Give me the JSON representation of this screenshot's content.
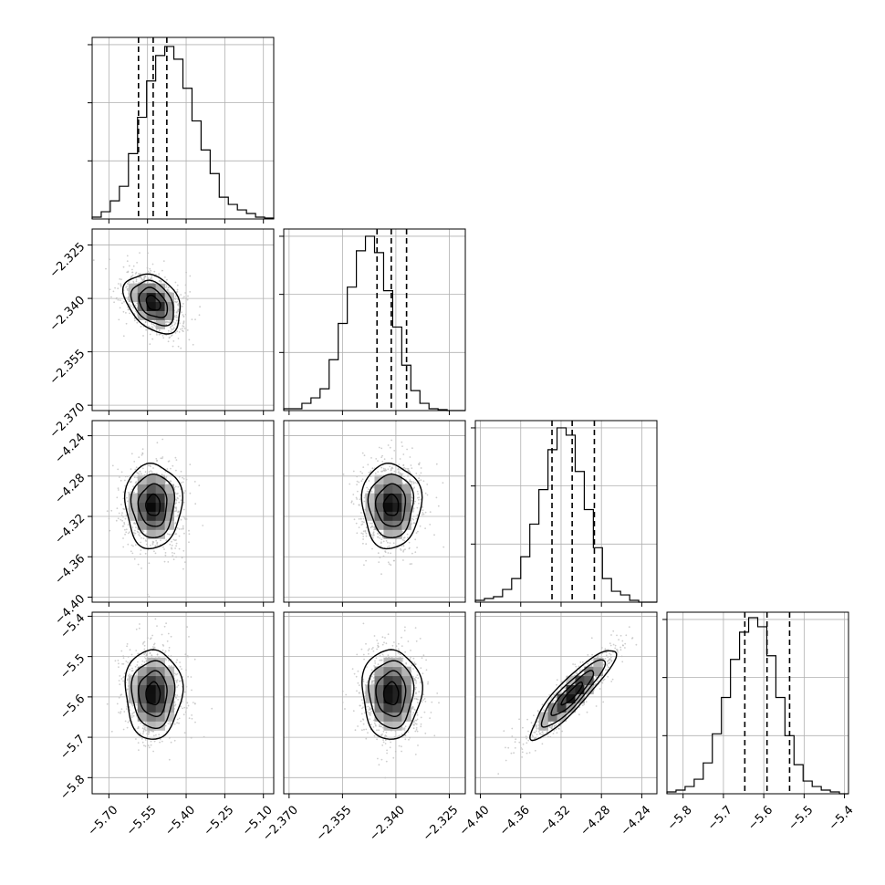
{
  "chart_data": {
    "type": "corner",
    "parameters": [
      {
        "ticks": [
          -5.7,
          -5.55,
          -5.4,
          -5.25,
          -5.1
        ],
        "tick_labels": [
          "−5.70",
          "−5.55",
          "−5.40",
          "−5.25",
          "−5.10"
        ],
        "range": [
          -5.765,
          -5.06
        ],
        "median": -5.528,
        "q16": -5.585,
        "q84": -5.475
      },
      {
        "ticks": [
          -2.37,
          -2.355,
          -2.34,
          -2.325
        ],
        "tick_labels": [
          "−2.370",
          "−2.355",
          "−2.340",
          "−2.325"
        ],
        "range": [
          -2.3715,
          -2.3205
        ],
        "median": -2.3413,
        "q16": -2.3453,
        "q84": -2.337
      },
      {
        "ticks": [
          -4.4,
          -4.36,
          -4.32,
          -4.28,
          -4.24
        ],
        "tick_labels": [
          "−4.40",
          "−4.36",
          "−4.32",
          "−4.28",
          "−4.24"
        ],
        "range": [
          -4.405,
          -4.225
        ],
        "median": -4.309,
        "q16": -4.329,
        "q84": -4.287
      },
      {
        "ticks": [
          -5.8,
          -5.7,
          -5.6,
          -5.5,
          -5.4
        ],
        "tick_labels": [
          "−5.8",
          "−5.7",
          "−5.6",
          "−5.5",
          "−5.4"
        ],
        "range": [
          -5.84,
          -5.39
        ],
        "median": -5.592,
        "q16": -5.647,
        "q84": -5.536
      }
    ],
    "histograms": [
      [
        0.01,
        0.04,
        0.1,
        0.18,
        0.36,
        0.56,
        0.76,
        0.9,
        0.95,
        0.88,
        0.72,
        0.54,
        0.38,
        0.25,
        0.12,
        0.08,
        0.05,
        0.03,
        0.01,
        0.005
      ],
      [
        0.01,
        0.01,
        0.04,
        0.07,
        0.12,
        0.28,
        0.48,
        0.68,
        0.88,
        0.96,
        0.87,
        0.66,
        0.46,
        0.25,
        0.11,
        0.04,
        0.01,
        0.005,
        0.0,
        0.0
      ],
      [
        0.01,
        0.02,
        0.03,
        0.07,
        0.13,
        0.25,
        0.43,
        0.62,
        0.84,
        0.96,
        0.92,
        0.72,
        0.51,
        0.3,
        0.13,
        0.06,
        0.04,
        0.01,
        0.0,
        0.0
      ],
      [
        0.01,
        0.02,
        0.04,
        0.08,
        0.17,
        0.33,
        0.53,
        0.74,
        0.89,
        0.97,
        0.92,
        0.76,
        0.53,
        0.32,
        0.16,
        0.07,
        0.04,
        0.02,
        0.01,
        0.0
      ]
    ],
    "correlations": [
      [
        0,
        -0.35,
        0,
        0
      ],
      [
        -0.35,
        0,
        0,
        0
      ],
      [
        0,
        0,
        0,
        0.9
      ],
      [
        0,
        0,
        0.9,
        0
      ]
    ],
    "contour_levels": [
      0.5,
      1.0,
      1.5,
      2.0
    ],
    "grid": true,
    "colors": {
      "line": "#000000",
      "points": "#bdbdbd",
      "grid": "#b0b0b0"
    }
  }
}
